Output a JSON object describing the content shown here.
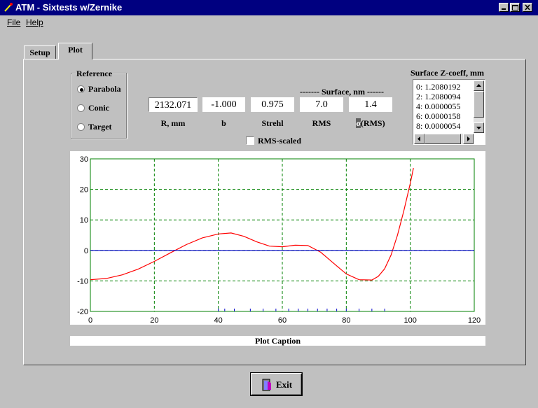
{
  "window": {
    "title": "ATM - Sixtests w/Zernike"
  },
  "menu": {
    "file": "File",
    "help": "Help"
  },
  "tabs": [
    {
      "label": "Setup",
      "active": false
    },
    {
      "label": "Plot",
      "active": true
    }
  ],
  "reference": {
    "label": "Reference",
    "options": [
      "Parabola",
      "Conic",
      "Target"
    ],
    "selected": "Parabola"
  },
  "surface_header": "------- Surface, nm ------",
  "fields": [
    {
      "value": "2132.071",
      "label": "R, mm"
    },
    {
      "value": "-1.000",
      "label": "b"
    },
    {
      "value": "0.975",
      "label": "Strehl"
    },
    {
      "value": "7.0",
      "label": "RMS"
    },
    {
      "value": "1.4",
      "label": "(RMS)",
      "label_prefix": "σ"
    }
  ],
  "rms_scaled": {
    "label": "RMS-scaled",
    "checked": false
  },
  "zcoeff": {
    "label": "Surface Z-coeff, mm",
    "items": [
      "0:  1.2080192",
      "2:  1.2080094",
      "4:  0.0000055",
      "6:  0.0000158",
      "8:  0.0000054"
    ]
  },
  "chart_data": {
    "type": "line",
    "xlim": [
      0,
      120
    ],
    "ylim": [
      -20,
      30
    ],
    "xticks": [
      "0",
      "20",
      "40",
      "60",
      "80",
      "100",
      "120"
    ],
    "yticks": [
      "30",
      "20",
      "10",
      "0",
      "-10",
      "-20"
    ],
    "grid": true,
    "series": [
      {
        "color": "#ff0000",
        "x": [
          0,
          5,
          10,
          15,
          20,
          25,
          30,
          35,
          40,
          44,
          48,
          52,
          56,
          60,
          64,
          68,
          72,
          76,
          80,
          84,
          88,
          90,
          92,
          94,
          96,
          98,
          100,
          101
        ],
        "y": [
          -9.6,
          -9.2,
          -8,
          -6.1,
          -3.6,
          -0.8,
          1.9,
          4.1,
          5.4,
          5.7,
          4.6,
          2.8,
          1.4,
          1.2,
          1.7,
          1.6,
          -0.6,
          -4.2,
          -7.7,
          -9.6,
          -9.7,
          -8.5,
          -6,
          -1.5,
          5,
          13,
          22,
          27
        ]
      },
      {
        "color": "#0000cc",
        "x": [
          0,
          120
        ],
        "y": [
          0,
          0
        ]
      }
    ],
    "markers_x": [
      40,
      42,
      45,
      50,
      54,
      58,
      62,
      65,
      68,
      71,
      74,
      77,
      80,
      84,
      88,
      92
    ],
    "caption": "Plot Caption"
  },
  "exit_label": "Exit"
}
